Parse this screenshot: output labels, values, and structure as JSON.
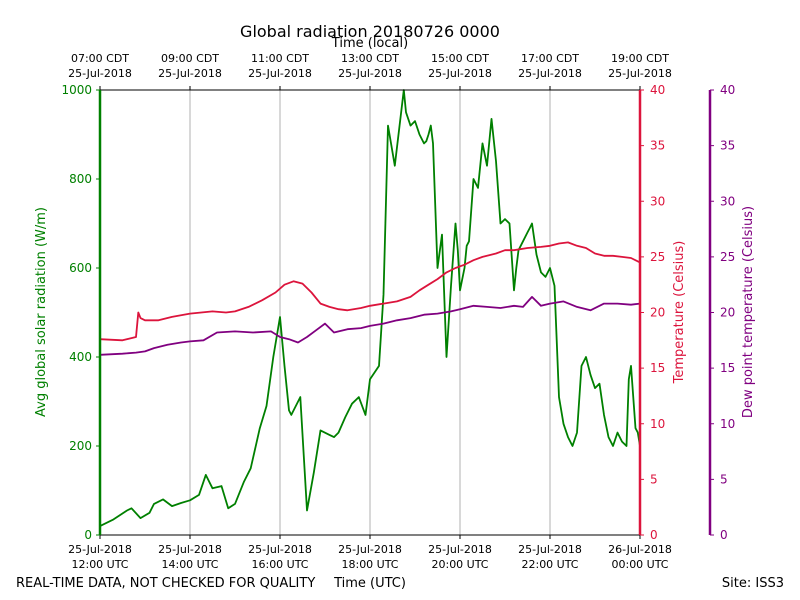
{
  "chart_data": {
    "type": "line",
    "title": "Global radiation 20180726 0000",
    "top_axis_label": "Time (local)",
    "xlabel": "Time (UTC)",
    "footer_left": "REAL-TIME DATA, NOT CHECKED FOR QUALITY",
    "footer_right": "Site: ISS3",
    "x_range_hours": [
      12,
      24
    ],
    "bottom_ticks": [
      {
        "h": 12,
        "line1": "25-Jul-2018",
        "line2": "12:00 UTC"
      },
      {
        "h": 14,
        "line1": "25-Jul-2018",
        "line2": "14:00 UTC"
      },
      {
        "h": 16,
        "line1": "25-Jul-2018",
        "line2": "16:00 UTC"
      },
      {
        "h": 18,
        "line1": "25-Jul-2018",
        "line2": "18:00 UTC"
      },
      {
        "h": 20,
        "line1": "25-Jul-2018",
        "line2": "20:00 UTC"
      },
      {
        "h": 22,
        "line1": "25-Jul-2018",
        "line2": "22:00 UTC"
      },
      {
        "h": 24,
        "line1": "26-Jul-2018",
        "line2": "00:00 UTC"
      }
    ],
    "top_ticks": [
      {
        "h": 12,
        "line1": "07:00 CDT",
        "line2": "25-Jul-2018"
      },
      {
        "h": 14,
        "line1": "09:00 CDT",
        "line2": "25-Jul-2018"
      },
      {
        "h": 16,
        "line1": "11:00 CDT",
        "line2": "25-Jul-2018"
      },
      {
        "h": 18,
        "line1": "13:00 CDT",
        "line2": "25-Jul-2018"
      },
      {
        "h": 20,
        "line1": "15:00 CDT",
        "line2": "25-Jul-2018"
      },
      {
        "h": 22,
        "line1": "17:00 CDT",
        "line2": "25-Jul-2018"
      },
      {
        "h": 24,
        "line1": "19:00 CDT",
        "line2": "25-Jul-2018"
      }
    ],
    "axes": {
      "radiation": {
        "label": "Avg global solar radiation (W/m)",
        "ylim": [
          0,
          1000
        ],
        "ticks": [
          0,
          200,
          400,
          600,
          800,
          1000
        ],
        "color": "#008000"
      },
      "temperature": {
        "label": "Temperature (Celsius)",
        "ylim": [
          0,
          40
        ],
        "ticks": [
          0,
          5,
          10,
          15,
          20,
          25,
          30,
          35,
          40
        ],
        "color": "#dc143c"
      },
      "dewpoint": {
        "label": "Dew point temperature (Celsius)",
        "ylim": [
          0,
          40
        ],
        "ticks": [
          0,
          5,
          10,
          15,
          20,
          25,
          30,
          35,
          40
        ],
        "color": "#800080"
      }
    },
    "series": [
      {
        "name": "Avg global solar radiation",
        "axis": "radiation",
        "color": "#008000",
        "x": [
          12.0,
          12.3,
          12.6,
          12.7,
          12.9,
          13.1,
          13.2,
          13.4,
          13.6,
          13.8,
          14.0,
          14.2,
          14.35,
          14.5,
          14.7,
          14.85,
          15.0,
          15.2,
          15.35,
          15.55,
          15.7,
          15.85,
          16.0,
          16.1,
          16.2,
          16.25,
          16.45,
          16.6,
          16.75,
          16.9,
          17.1,
          17.2,
          17.3,
          17.45,
          17.6,
          17.75,
          17.9,
          18.0,
          18.2,
          18.3,
          18.4,
          18.55,
          18.75,
          18.8,
          18.9,
          19.0,
          19.1,
          19.2,
          19.25,
          19.3,
          19.35,
          19.4,
          19.5,
          19.6,
          19.7,
          19.8,
          19.9,
          19.95,
          20.0,
          20.1,
          20.15,
          20.2,
          20.3,
          20.4,
          20.5,
          20.6,
          20.7,
          20.8,
          20.9,
          21.0,
          21.1,
          21.2,
          21.25,
          21.3,
          21.4,
          21.5,
          21.55,
          21.6,
          21.7,
          21.8,
          21.9,
          22.0,
          22.1,
          22.2,
          22.3,
          22.4,
          22.5,
          22.6,
          22.7,
          22.8,
          22.9,
          23.0,
          23.1,
          23.2,
          23.3,
          23.4,
          23.5,
          23.6,
          23.7,
          23.75,
          23.8,
          23.9,
          23.95,
          24.0
        ],
        "y": [
          20,
          35,
          55,
          60,
          38,
          50,
          70,
          80,
          65,
          72,
          78,
          90,
          135,
          105,
          110,
          60,
          70,
          120,
          150,
          240,
          290,
          400,
          490,
          380,
          280,
          270,
          310,
          55,
          140,
          235,
          225,
          220,
          230,
          265,
          295,
          310,
          270,
          350,
          380,
          540,
          920,
          830,
          1000,
          950,
          920,
          930,
          900,
          880,
          885,
          900,
          920,
          880,
          600,
          675,
          400,
          560,
          700,
          640,
          550,
          600,
          650,
          660,
          800,
          780,
          880,
          830,
          935,
          840,
          700,
          710,
          700,
          550,
          600,
          640,
          660,
          680,
          690,
          700,
          630,
          590,
          580,
          600,
          560,
          310,
          250,
          220,
          200,
          230,
          380,
          400,
          360,
          330,
          340,
          270,
          220,
          200,
          230,
          210,
          200,
          350,
          380,
          240,
          230,
          200
        ]
      },
      {
        "name": "Temperature",
        "axis": "temperature",
        "color": "#dc143c",
        "x": [
          12.0,
          12.5,
          12.8,
          12.85,
          12.9,
          13.0,
          13.3,
          13.6,
          14.0,
          14.5,
          14.8,
          15.0,
          15.3,
          15.6,
          15.9,
          16.1,
          16.3,
          16.5,
          16.7,
          16.9,
          17.1,
          17.3,
          17.5,
          17.8,
          18.0,
          18.3,
          18.6,
          18.9,
          19.1,
          19.3,
          19.5,
          19.7,
          19.9,
          20.1,
          20.3,
          20.5,
          20.8,
          21.0,
          21.2,
          21.5,
          21.8,
          22.0,
          22.2,
          22.4,
          22.6,
          22.8,
          23.0,
          23.2,
          23.4,
          23.6,
          23.8,
          24.0
        ],
        "y": [
          17.6,
          17.5,
          17.8,
          20.0,
          19.5,
          19.3,
          19.3,
          19.6,
          19.9,
          20.1,
          20.0,
          20.1,
          20.5,
          21.1,
          21.8,
          22.5,
          22.8,
          22.6,
          21.8,
          20.8,
          20.5,
          20.3,
          20.2,
          20.4,
          20.6,
          20.8,
          21.0,
          21.4,
          22.0,
          22.5,
          23.0,
          23.6,
          24.0,
          24.3,
          24.7,
          25.0,
          25.3,
          25.6,
          25.6,
          25.8,
          25.9,
          26.0,
          26.2,
          26.3,
          26.0,
          25.8,
          25.3,
          25.1,
          25.1,
          25.0,
          24.9,
          24.5
        ]
      },
      {
        "name": "Dew point temperature",
        "axis": "dewpoint",
        "color": "#800080",
        "x": [
          12.0,
          12.5,
          12.8,
          13.0,
          13.2,
          13.5,
          13.8,
          14.0,
          14.3,
          14.6,
          15.0,
          15.4,
          15.8,
          16.0,
          16.2,
          16.4,
          16.6,
          16.8,
          17.0,
          17.2,
          17.5,
          17.8,
          18.0,
          18.3,
          18.6,
          18.9,
          19.2,
          19.5,
          19.8,
          20.0,
          20.3,
          20.6,
          20.9,
          21.2,
          21.4,
          21.6,
          21.8,
          22.0,
          22.3,
          22.6,
          22.9,
          23.2,
          23.5,
          23.8,
          24.0
        ],
        "y": [
          16.2,
          16.3,
          16.4,
          16.5,
          16.8,
          17.1,
          17.3,
          17.4,
          17.5,
          18.2,
          18.3,
          18.2,
          18.3,
          17.8,
          17.6,
          17.3,
          17.8,
          18.4,
          19.0,
          18.2,
          18.5,
          18.6,
          18.8,
          19.0,
          19.3,
          19.5,
          19.8,
          19.9,
          20.1,
          20.3,
          20.6,
          20.5,
          20.4,
          20.6,
          20.5,
          21.4,
          20.6,
          20.8,
          21.0,
          20.5,
          20.2,
          20.8,
          20.8,
          20.7,
          20.8
        ]
      }
    ]
  }
}
